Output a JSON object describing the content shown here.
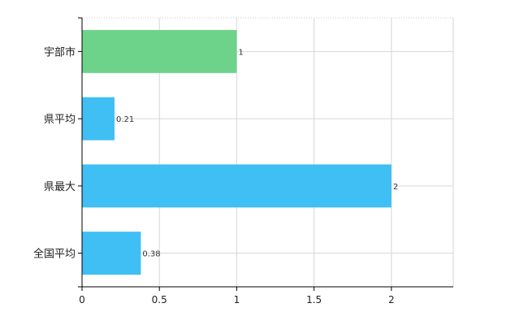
{
  "chart_data": {
    "type": "bar",
    "orientation": "horizontal",
    "title": "",
    "xlabel": "",
    "ylabel": "",
    "categories": [
      "宇部市",
      "県平均",
      "県最大",
      "全国平均"
    ],
    "values": [
      1,
      0.21,
      2,
      0.38
    ],
    "value_labels": [
      "1",
      "0.21",
      "2",
      "0.38"
    ],
    "bar_colors": [
      "#6dd38a",
      "#3fbff3",
      "#3fbff3",
      "#3fbff3"
    ],
    "xlim": [
      0,
      2.4
    ],
    "x_ticks": [
      0,
      0.5,
      1,
      1.5,
      2
    ],
    "x_tick_labels": [
      "0",
      "0.5",
      "1",
      "1.5",
      "2"
    ],
    "grid": true,
    "legend": "none"
  }
}
